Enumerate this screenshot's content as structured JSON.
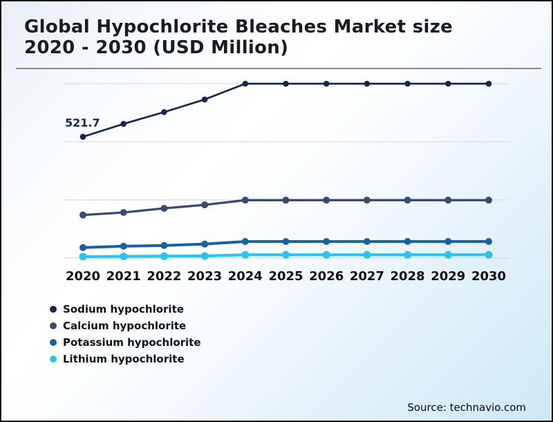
{
  "title": {
    "line1": "Global Hypochlorite Bleaches Market size",
    "line2": "2020 - 2030 (USD Million)"
  },
  "source": {
    "text": "Source: technavio.com"
  },
  "chart_data": {
    "type": "line",
    "title": "Global Hypochlorite Bleaches Market size 2020 - 2030 (USD Million)",
    "x": [
      "2020",
      "2021",
      "2022",
      "2023",
      "2024",
      "2025",
      "2026",
      "2027",
      "2028",
      "2029",
      "2030"
    ],
    "ylim": [
      0,
      750
    ],
    "grid": "4 horizontal unlabeled gridlines, no y-axis tick labels",
    "legend_position": "bottom-left",
    "data_labels": [
      {
        "series": "Sodium hypochlorite",
        "x": "2020",
        "value": "521.7"
      }
    ],
    "series": [
      {
        "name": "Sodium hypochlorite",
        "color": "#14264c",
        "data_label": "521.7",
        "values": [
          521.7,
          577,
          628,
          682,
          750,
          750,
          750,
          750,
          750,
          750,
          750
        ]
      },
      {
        "name": "Calcium hypochlorite",
        "color": "#3a4a74",
        "values": [
          185,
          196,
          214,
          229,
          249,
          249,
          249,
          249,
          249,
          249,
          249
        ]
      },
      {
        "name": "Potassium hypochlorite",
        "color": "#1760a8",
        "values": [
          45,
          51,
          54,
          60,
          71,
          71,
          71,
          71,
          71,
          71,
          71
        ]
      },
      {
        "name": "Lithium hypochlorite",
        "color": "#29c5ee",
        "values": [
          6,
          7,
          8,
          9,
          14,
          14,
          14,
          14,
          14,
          14,
          14
        ]
      }
    ]
  }
}
